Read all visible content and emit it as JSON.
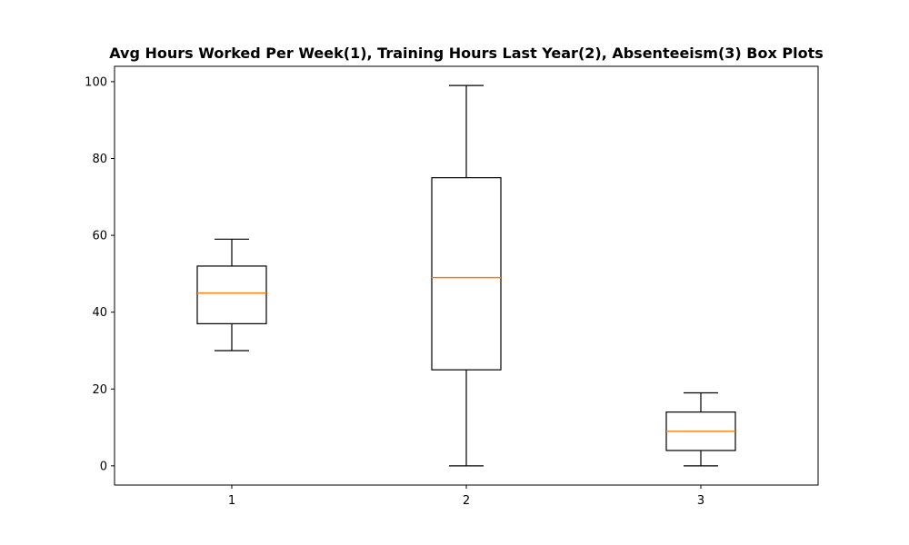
{
  "chart_data": {
    "type": "box",
    "title": "Avg Hours Worked Per Week(1), Training Hours Last Year(2), Absenteeism(3) Box Plots",
    "xlabel": "",
    "ylabel": "",
    "categories": [
      "1",
      "2",
      "3"
    ],
    "boxes": [
      {
        "category": "1",
        "min": 30,
        "q1": 37,
        "median": 45,
        "q3": 52,
        "max": 59
      },
      {
        "category": "2",
        "min": 0,
        "q1": 25,
        "median": 49,
        "q3": 75,
        "max": 99
      },
      {
        "category": "3",
        "min": 0,
        "q1": 4,
        "median": 9,
        "q3": 14,
        "max": 19
      }
    ],
    "y_ticks": [
      0,
      20,
      40,
      60,
      80,
      100
    ],
    "ylim": [
      -5,
      104
    ],
    "grid": false,
    "colors": {
      "box": "#000000",
      "whisker": "#000000",
      "median": "#ff7f0e",
      "background": "#ffffff"
    }
  }
}
